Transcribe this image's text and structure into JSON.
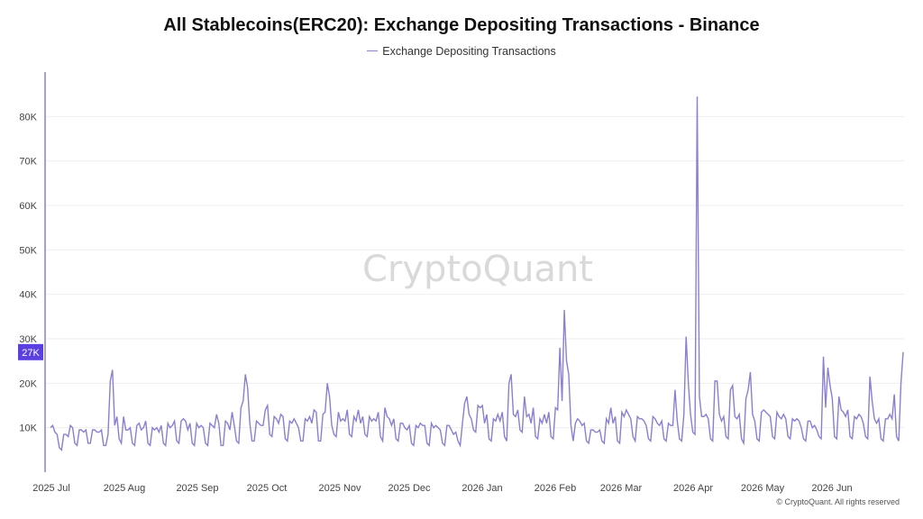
{
  "chart_data": {
    "type": "line",
    "title": "All Stablecoins(ERC20): Exchange Depositing Transactions - Binance",
    "legend_position": "top-center",
    "grid": true,
    "series": [
      {
        "name": "Exchange Depositing Transactions",
        "color": "#8a7fd0",
        "values": [
          10000,
          10500,
          9000,
          8500,
          5500,
          5000,
          8500,
          8500,
          8000,
          10500,
          10000,
          6500,
          6000,
          9500,
          9500,
          9000,
          9500,
          6500,
          6500,
          9500,
          9500,
          9000,
          9000,
          9500,
          6000,
          6000,
          8500,
          20500,
          23000,
          10500,
          12500,
          7500,
          6500,
          12500,
          9500,
          9500,
          10000,
          6500,
          6000,
          10500,
          11000,
          9500,
          10000,
          11500,
          6500,
          6000,
          10000,
          9500,
          10000,
          9000,
          10500,
          6500,
          6000,
          11000,
          10000,
          10500,
          11500,
          7000,
          6500,
          11500,
          12000,
          11500,
          9500,
          11000,
          6500,
          6000,
          11000,
          10000,
          10500,
          10000,
          6500,
          6000,
          11000,
          10500,
          10000,
          13000,
          11000,
          6000,
          6000,
          11500,
          11000,
          9500,
          13500,
          10500,
          7000,
          6500,
          14500,
          16000,
          22000,
          19000,
          11000,
          7000,
          7000,
          11500,
          11000,
          10500,
          10500,
          14000,
          15000,
          8500,
          8000,
          12500,
          12000,
          11000,
          13000,
          12500,
          7500,
          7000,
          11500,
          11000,
          12000,
          11000,
          10000,
          7000,
          7000,
          12000,
          11500,
          12500,
          11000,
          14000,
          13500,
          7000,
          7000,
          13000,
          13500,
          20000,
          17000,
          10500,
          8500,
          8000,
          13500,
          11500,
          12000,
          11500,
          14000,
          8500,
          8000,
          12500,
          11500,
          14000,
          11000,
          12500,
          8500,
          8000,
          12500,
          11500,
          12000,
          11500,
          13500,
          8000,
          7000,
          14500,
          12500,
          12000,
          10500,
          12000,
          7500,
          7000,
          11000,
          11000,
          10000,
          9500,
          10500,
          6500,
          6000,
          10500,
          10000,
          11000,
          10500,
          10500,
          6500,
          6000,
          11000,
          10000,
          10500,
          10000,
          9500,
          6500,
          6000,
          10500,
          10500,
          9500,
          8500,
          9000,
          7000,
          6000,
          11000,
          15500,
          17000,
          13000,
          12000,
          9500,
          9000,
          15000,
          14500,
          15000,
          11000,
          13000,
          7500,
          7000,
          12000,
          11500,
          13000,
          11500,
          13500,
          8000,
          7000,
          20000,
          22000,
          13000,
          12500,
          14000,
          9500,
          9000,
          17000,
          12500,
          13000,
          11000,
          14500,
          8000,
          7500,
          12000,
          11000,
          13000,
          11000,
          13500,
          8000,
          7500,
          14500,
          14000,
          28000,
          16000,
          36500,
          25000,
          22000,
          10500,
          7000,
          11000,
          12000,
          11500,
          10500,
          11000,
          7000,
          6500,
          9500,
          9500,
          9000,
          9000,
          9500,
          7000,
          6500,
          12000,
          11000,
          14500,
          11000,
          12500,
          7000,
          6500,
          13500,
          12500,
          14000,
          13000,
          12000,
          8000,
          7000,
          12500,
          12000,
          12000,
          11500,
          10500,
          7500,
          7000,
          12500,
          12000,
          11000,
          10500,
          11500,
          7500,
          7000,
          11000,
          10500,
          10500,
          18500,
          11500,
          7500,
          7000,
          13000,
          30500,
          20000,
          13000,
          9000,
          8500,
          84500,
          17000,
          12500,
          12500,
          13000,
          12000,
          7500,
          7000,
          20500,
          20500,
          13000,
          11500,
          12500,
          8000,
          7500,
          18500,
          19500,
          12500,
          12000,
          13000,
          7500,
          6500,
          16500,
          18500,
          22500,
          13000,
          11500,
          7500,
          7000,
          13500,
          14000,
          13500,
          13000,
          12500,
          8000,
          7500,
          13500,
          12500,
          12000,
          13000,
          12000,
          8000,
          7500,
          12000,
          11500,
          12000,
          11500,
          10000,
          7500,
          7000,
          11500,
          11500,
          10000,
          10500,
          9500,
          8000,
          7500,
          26000,
          14500,
          23500,
          19500,
          16500,
          8000,
          7500,
          17000,
          14000,
          13500,
          12500,
          14000,
          8000,
          7500,
          12500,
          12000,
          13000,
          12500,
          11000,
          8000,
          7500,
          21500,
          16000,
          12000,
          11000,
          12000,
          7500,
          7000,
          12000,
          12000,
          13000,
          12000,
          17500,
          8000,
          7000,
          20000,
          27000
        ]
      }
    ],
    "x_tick_labels": [
      "2025 Jul",
      "2025 Aug",
      "2025 Sep",
      "2025 Oct",
      "2025 Nov",
      "2025 Dec",
      "2026 Jan",
      "2026 Feb",
      "2026 Mar",
      "2026 Apr",
      "2026 May",
      "2026 Jun"
    ],
    "y_tick_labels": [
      "10K",
      "20K",
      "30K",
      "40K",
      "50K",
      "60K",
      "70K",
      "80K"
    ],
    "y_ticks": [
      10000,
      20000,
      30000,
      40000,
      50000,
      60000,
      70000,
      80000
    ],
    "ylim": [
      0,
      90000
    ],
    "current_value": 27000,
    "current_value_label": "27K",
    "watermark": "CryptoQuant",
    "copyright": "© CryptoQuant. All rights reserved"
  }
}
